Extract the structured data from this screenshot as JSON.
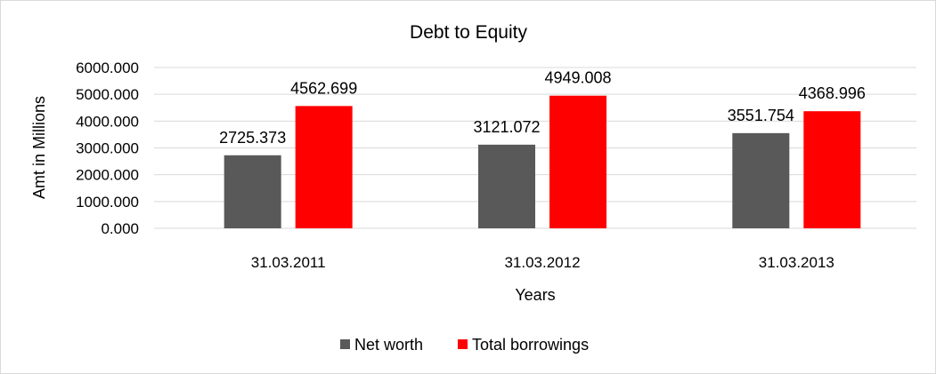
{
  "chart_data": {
    "type": "bar",
    "title": "Debt to Equity",
    "xlabel": "Years",
    "ylabel": "Amt in Millions",
    "categories": [
      "31.03.2011",
      "31.03.2012",
      "31.03.2013"
    ],
    "series": [
      {
        "name": "Net worth",
        "color": "#595959",
        "values": [
          2725.373,
          3121.072,
          3551.754
        ]
      },
      {
        "name": "Total borrowings",
        "color": "#ff0000",
        "values": [
          4562.699,
          4949.008,
          4368.996
        ]
      }
    ],
    "ylim": [
      0,
      6000
    ],
    "yticks": [
      "0.000",
      "1000.000",
      "2000.000",
      "3000.000",
      "4000.000",
      "5000.000",
      "6000.000"
    ],
    "data_labels": [
      [
        "2725.373",
        "3121.072",
        "3551.754"
      ],
      [
        "4562.699",
        "4949.008",
        "4368.996"
      ]
    ],
    "grid": true,
    "legend": "bottom-center"
  }
}
